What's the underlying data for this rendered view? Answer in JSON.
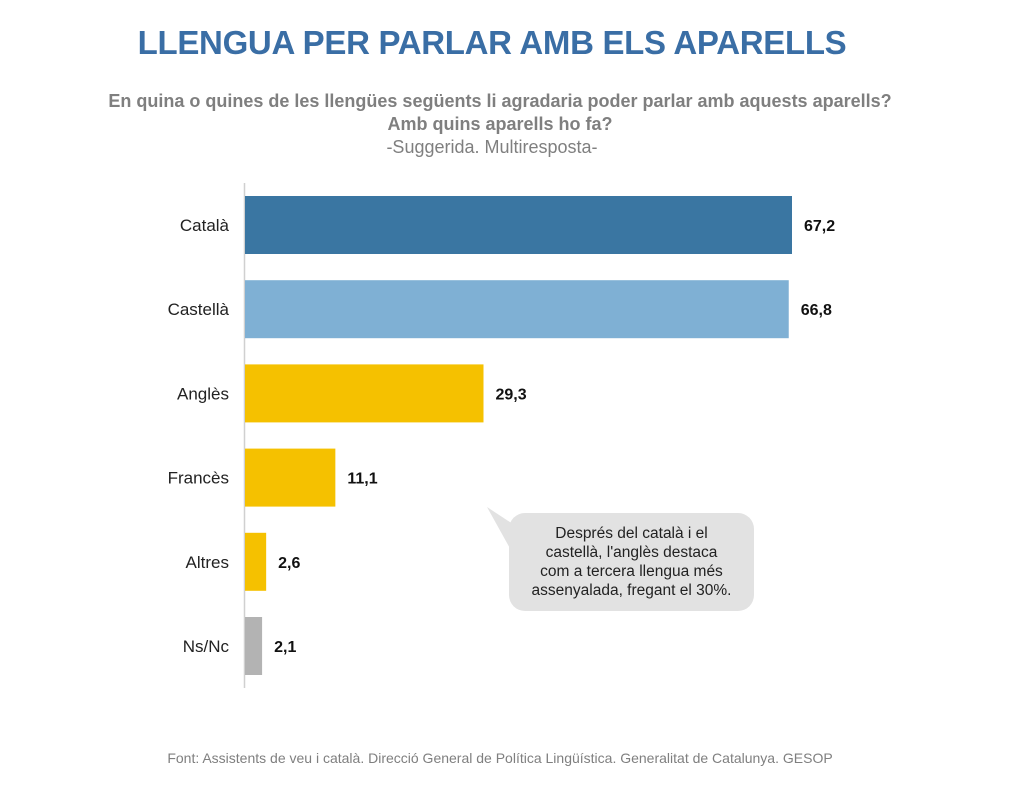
{
  "header": {
    "title": "LLENGUA PER PARLAR AMB ELS APARELLS",
    "question_line1": "En quina o quines de les llengües següents li agradaria poder parlar amb aquests aparells?",
    "question_line2": "Amb quins aparells ho fa?",
    "question_note": "-Suggerida. Multiresposta-"
  },
  "callout": {
    "text_lines": [
      "Després del català i el",
      "castellà, l'anglès destaca",
      "com a tercera llengua més",
      "assenyalada, fregant el 30%."
    ]
  },
  "footer": {
    "source": "Font: Assistents de veu i català. Direcció General de Política Lingüística. Generalitat de Catalunya. GESOP"
  },
  "chart_data": {
    "type": "bar",
    "orientation": "horizontal",
    "title": "LLENGUA PER PARLAR AMB ELS APARELLS",
    "xlabel": "",
    "ylabel": "",
    "xlim": [
      0,
      67.2
    ],
    "grid": false,
    "legend": "none",
    "categories": [
      "Català",
      "Castellà",
      "Anglès",
      "Francès",
      "Altres",
      "Ns/Nc"
    ],
    "values": [
      67.2,
      66.8,
      29.3,
      11.1,
      2.6,
      2.1
    ],
    "value_labels": [
      "67,2",
      "66,8",
      "29,3",
      "11,1",
      "2,6",
      "2,1"
    ],
    "colors": [
      "#3a76a2",
      "#7fb0d4",
      "#f5c100",
      "#f5c100",
      "#f5c100",
      "#b3b3b3"
    ]
  }
}
